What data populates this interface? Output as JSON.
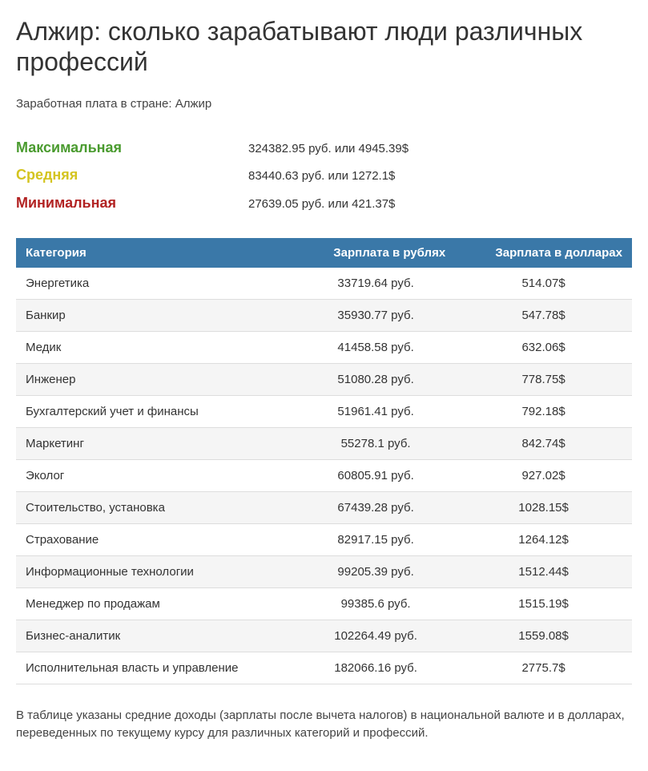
{
  "heading": "Алжир: сколько зарабатывают люди различных профессий",
  "subtitle": "Заработная плата в стране: Алжир",
  "stats": {
    "max_label": "Максимальная",
    "max_value": "324382.95 руб. или 4945.39$",
    "avg_label": "Средняя",
    "avg_value": "83440.63 руб. или 1272.1$",
    "min_label": "Минимальная",
    "min_value": "27639.05 руб. или 421.37$"
  },
  "table": {
    "header_bg": "#3a78a8",
    "header_text_color": "#ffffff",
    "row_alt_bg": "#f5f5f5",
    "border_color": "#dddddd",
    "columns": [
      "Категория",
      "Зарплата в рублях",
      "Зарплата в долларах"
    ],
    "rows": [
      {
        "cat": "Энергетика",
        "rub": "33719.64 руб.",
        "usd": "514.07$"
      },
      {
        "cat": "Банкир",
        "rub": "35930.77 руб.",
        "usd": "547.78$"
      },
      {
        "cat": "Медик",
        "rub": "41458.58 руб.",
        "usd": "632.06$"
      },
      {
        "cat": "Инженер",
        "rub": "51080.28 руб.",
        "usd": "778.75$"
      },
      {
        "cat": "Бухгалтерский учет и финансы",
        "rub": "51961.41 руб.",
        "usd": "792.18$"
      },
      {
        "cat": "Маркетинг",
        "rub": "55278.1 руб.",
        "usd": "842.74$"
      },
      {
        "cat": "Эколог",
        "rub": "60805.91 руб.",
        "usd": "927.02$"
      },
      {
        "cat": "Стоительство, установка",
        "rub": "67439.28 руб.",
        "usd": "1028.15$"
      },
      {
        "cat": "Страхование",
        "rub": "82917.15 руб.",
        "usd": "1264.12$"
      },
      {
        "cat": "Информационные технологии",
        "rub": "99205.39 руб.",
        "usd": "1512.44$"
      },
      {
        "cat": "Менеджер по продажам",
        "rub": "99385.6 руб.",
        "usd": "1515.19$"
      },
      {
        "cat": "Бизнес-аналитик",
        "rub": "102264.49 руб.",
        "usd": "1559.08$"
      },
      {
        "cat": "Исполнительная власть и управление",
        "rub": "182066.16 руб.",
        "usd": "2775.7$"
      }
    ]
  },
  "footnote": "В таблице указаны средние доходы (зарплаты после вычета налогов) в национальной валюте и в долларах, переведенных по текущему курсу для различных категорий и профессий.",
  "colors": {
    "max": "#4a9b2f",
    "avg": "#d4c420",
    "min": "#b22222"
  }
}
